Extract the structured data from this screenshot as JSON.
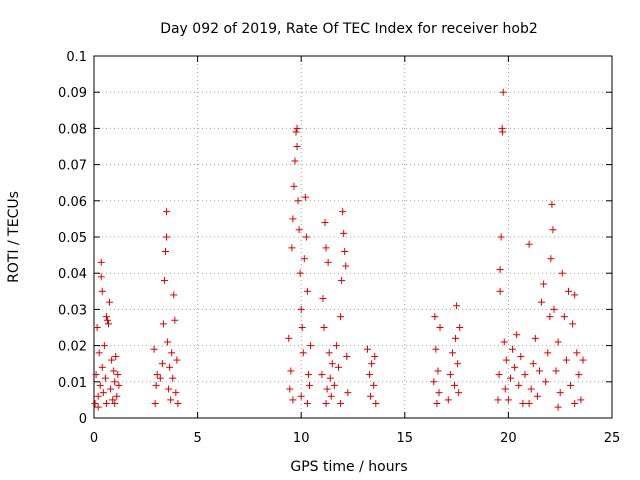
{
  "chart_data": {
    "type": "scatter",
    "title": "Day 092 of 2019, Rate Of TEC Index for receiver hob2",
    "xlabel": "GPS time / hours",
    "ylabel": "ROTI / TECUs",
    "xlim": [
      0,
      25
    ],
    "ylim": [
      0,
      0.1
    ],
    "xticks": [
      "0",
      "5",
      "10",
      "15",
      "20",
      "25"
    ],
    "yticks": [
      "0",
      "0.01",
      "0.02",
      "0.03",
      "0.04",
      "0.05",
      "0.06",
      "0.07",
      "0.08",
      "0.09",
      "0.1"
    ],
    "grid": true,
    "marker": "+",
    "color": "#dd0000",
    "series": [
      {
        "name": "hob2",
        "points": [
          [
            0.05,
            0.004
          ],
          [
            0.1,
            0.012
          ],
          [
            0.15,
            0.025
          ],
          [
            0.2,
            0.006
          ],
          [
            0.25,
            0.018
          ],
          [
            0.3,
            0.009
          ],
          [
            0.35,
            0.039
          ],
          [
            0.35,
            0.043
          ],
          [
            0.4,
            0.035
          ],
          [
            0.4,
            0.014
          ],
          [
            0.45,
            0.007
          ],
          [
            0.5,
            0.02
          ],
          [
            0.55,
            0.011
          ],
          [
            0.6,
            0.028
          ],
          [
            0.65,
            0.027
          ],
          [
            0.7,
            0.026
          ],
          [
            0.75,
            0.032
          ],
          [
            0.8,
            0.008
          ],
          [
            0.85,
            0.016
          ],
          [
            0.9,
            0.005
          ],
          [
            0.95,
            0.013
          ],
          [
            1.0,
            0.01
          ],
          [
            1.05,
            0.017
          ],
          [
            1.1,
            0.006
          ],
          [
            1.15,
            0.012
          ],
          [
            1.2,
            0.009
          ],
          [
            0.2,
            0.003
          ],
          [
            0.6,
            0.004
          ],
          [
            1.0,
            0.004
          ],
          [
            2.9,
            0.019
          ],
          [
            2.95,
            0.004
          ],
          [
            3.0,
            0.009
          ],
          [
            3.05,
            0.012
          ],
          [
            3.2,
            0.011
          ],
          [
            3.3,
            0.015
          ],
          [
            3.35,
            0.026
          ],
          [
            3.4,
            0.038
          ],
          [
            3.45,
            0.046
          ],
          [
            3.5,
            0.057
          ],
          [
            3.5,
            0.05
          ],
          [
            3.55,
            0.021
          ],
          [
            3.6,
            0.008
          ],
          [
            3.65,
            0.014
          ],
          [
            3.7,
            0.005
          ],
          [
            3.75,
            0.018
          ],
          [
            3.8,
            0.011
          ],
          [
            3.85,
            0.034
          ],
          [
            3.9,
            0.027
          ],
          [
            3.95,
            0.007
          ],
          [
            4.0,
            0.016
          ],
          [
            4.05,
            0.004
          ],
          [
            9.4,
            0.022
          ],
          [
            9.45,
            0.008
          ],
          [
            9.5,
            0.013
          ],
          [
            9.55,
            0.047
          ],
          [
            9.6,
            0.055
          ],
          [
            9.65,
            0.064
          ],
          [
            9.7,
            0.071
          ],
          [
            9.75,
            0.079
          ],
          [
            9.8,
            0.08
          ],
          [
            9.8,
            0.075
          ],
          [
            9.85,
            0.06
          ],
          [
            9.9,
            0.052
          ],
          [
            9.95,
            0.04
          ],
          [
            10.0,
            0.03
          ],
          [
            10.05,
            0.025
          ],
          [
            10.1,
            0.018
          ],
          [
            10.15,
            0.044
          ],
          [
            10.2,
            0.061
          ],
          [
            10.25,
            0.05
          ],
          [
            10.3,
            0.035
          ],
          [
            10.35,
            0.012
          ],
          [
            10.4,
            0.009
          ],
          [
            10.45,
            0.02
          ],
          [
            9.6,
            0.005
          ],
          [
            10.0,
            0.006
          ],
          [
            10.3,
            0.004
          ],
          [
            11.0,
            0.012
          ],
          [
            11.05,
            0.033
          ],
          [
            11.1,
            0.025
          ],
          [
            11.15,
            0.054
          ],
          [
            11.2,
            0.047
          ],
          [
            11.25,
            0.008
          ],
          [
            11.3,
            0.043
          ],
          [
            11.35,
            0.018
          ],
          [
            11.4,
            0.011
          ],
          [
            11.45,
            0.006
          ],
          [
            11.5,
            0.015
          ],
          [
            11.6,
            0.009
          ],
          [
            11.7,
            0.02
          ],
          [
            11.8,
            0.014
          ],
          [
            11.9,
            0.028
          ],
          [
            11.95,
            0.038
          ],
          [
            12.0,
            0.057
          ],
          [
            12.05,
            0.051
          ],
          [
            12.1,
            0.046
          ],
          [
            12.15,
            0.042
          ],
          [
            12.2,
            0.017
          ],
          [
            12.25,
            0.007
          ],
          [
            11.2,
            0.004
          ],
          [
            11.9,
            0.004
          ],
          [
            13.2,
            0.019
          ],
          [
            13.3,
            0.012
          ],
          [
            13.35,
            0.006
          ],
          [
            13.4,
            0.015
          ],
          [
            13.5,
            0.009
          ],
          [
            13.55,
            0.017
          ],
          [
            13.6,
            0.004
          ],
          [
            16.4,
            0.01
          ],
          [
            16.45,
            0.028
          ],
          [
            16.5,
            0.019
          ],
          [
            16.55,
            0.004
          ],
          [
            16.6,
            0.013
          ],
          [
            16.65,
            0.007
          ],
          [
            16.7,
            0.025
          ],
          [
            17.1,
            0.005
          ],
          [
            17.2,
            0.012
          ],
          [
            17.3,
            0.018
          ],
          [
            17.4,
            0.009
          ],
          [
            17.45,
            0.022
          ],
          [
            17.5,
            0.031
          ],
          [
            17.55,
            0.015
          ],
          [
            17.6,
            0.007
          ],
          [
            17.65,
            0.025
          ],
          [
            19.5,
            0.005
          ],
          [
            19.55,
            0.012
          ],
          [
            19.6,
            0.035
          ],
          [
            19.6,
            0.041
          ],
          [
            19.65,
            0.05
          ],
          [
            19.7,
            0.08
          ],
          [
            19.72,
            0.079
          ],
          [
            19.75,
            0.09
          ],
          [
            19.8,
            0.021
          ],
          [
            19.85,
            0.008
          ],
          [
            19.9,
            0.016
          ],
          [
            20.0,
            0.005
          ],
          [
            20.1,
            0.011
          ],
          [
            20.2,
            0.019
          ],
          [
            20.3,
            0.014
          ],
          [
            20.4,
            0.023
          ],
          [
            20.5,
            0.009
          ],
          [
            20.6,
            0.017
          ],
          [
            20.7,
            0.004
          ],
          [
            20.8,
            0.012
          ],
          [
            21.0,
            0.048
          ],
          [
            21.1,
            0.008
          ],
          [
            21.2,
            0.015
          ],
          [
            21.3,
            0.022
          ],
          [
            21.4,
            0.006
          ],
          [
            21.5,
            0.013
          ],
          [
            21.6,
            0.032
          ],
          [
            21.7,
            0.037
          ],
          [
            21.8,
            0.01
          ],
          [
            21.9,
            0.018
          ],
          [
            22.0,
            0.028
          ],
          [
            22.05,
            0.044
          ],
          [
            22.1,
            0.059
          ],
          [
            22.15,
            0.052
          ],
          [
            22.2,
            0.03
          ],
          [
            22.3,
            0.013
          ],
          [
            22.4,
            0.021
          ],
          [
            22.5,
            0.007
          ],
          [
            22.6,
            0.04
          ],
          [
            22.7,
            0.028
          ],
          [
            22.8,
            0.016
          ],
          [
            22.9,
            0.035
          ],
          [
            23.0,
            0.009
          ],
          [
            23.1,
            0.026
          ],
          [
            23.2,
            0.034
          ],
          [
            23.3,
            0.018
          ],
          [
            23.4,
            0.012
          ],
          [
            23.5,
            0.005
          ],
          [
            23.6,
            0.016
          ],
          [
            21.0,
            0.004
          ],
          [
            22.4,
            0.003
          ],
          [
            23.2,
            0.004
          ]
        ]
      }
    ]
  }
}
